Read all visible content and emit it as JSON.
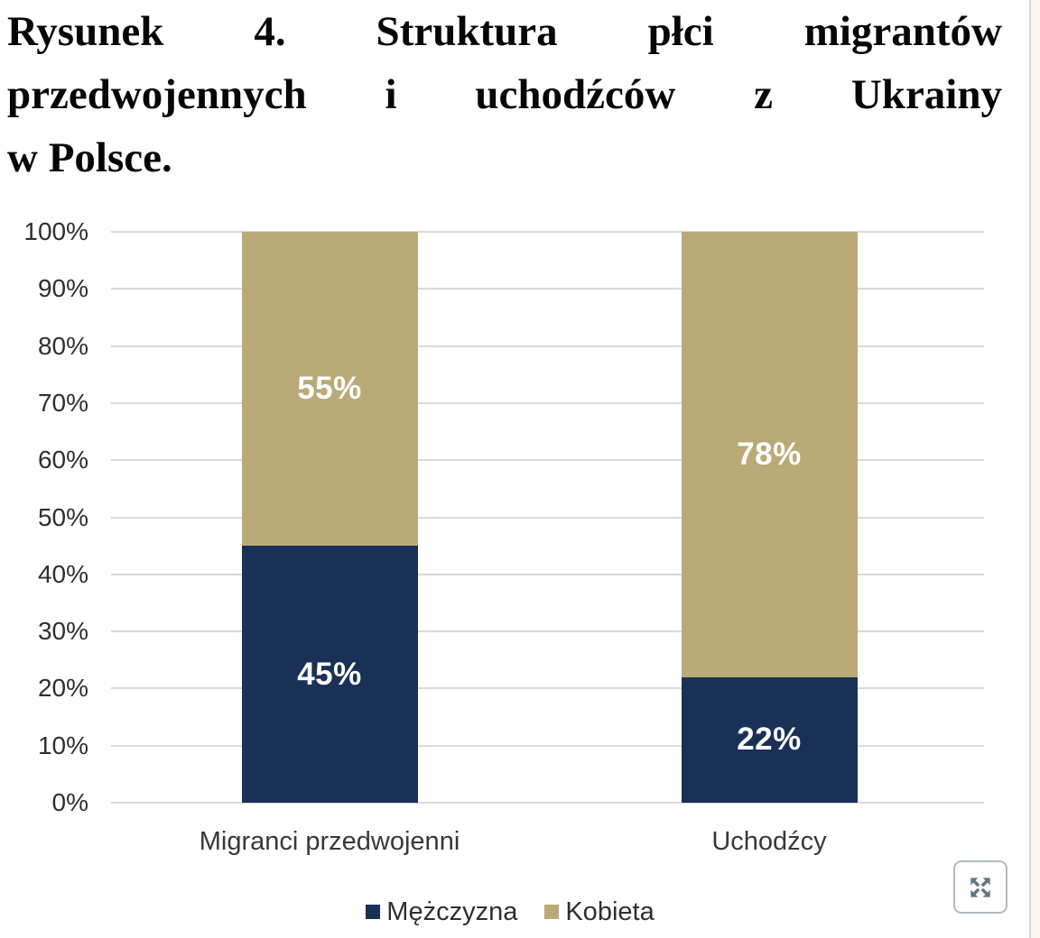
{
  "figure": {
    "title_full": "Rysunek 4. Struktura płci migrantów przedwojennych i uchodźców z Ukrainy w Polsce.",
    "title_lines": [
      "Rysunek 4. Struktura płci migrantów",
      "przedwojennych i uchodźców z Ukrainy",
      "w Polsce."
    ]
  },
  "chart_data": {
    "type": "bar",
    "stacked": true,
    "title": "Rysunek 4. Struktura płci migrantów przedwojennych i uchodźców z Ukrainy w Polsce.",
    "categories": [
      "Migranci przedwojenni",
      "Uchodźcy"
    ],
    "series": [
      {
        "name": "Mężczyzna",
        "color": "#1a3157",
        "values": [
          45,
          22
        ]
      },
      {
        "name": "Kobieta",
        "color": "#b9aa77",
        "values": [
          55,
          78
        ]
      }
    ],
    "data_labels": {
      "Mężczyzna": [
        "45%",
        "22%"
      ],
      "Kobieta": [
        "55%",
        "78%"
      ]
    },
    "xlabel": "",
    "ylabel": "",
    "ylim": [
      0,
      100
    ],
    "y_ticks": [
      100,
      90,
      80,
      70,
      60,
      50,
      40,
      30,
      20,
      10,
      0
    ],
    "y_tick_suffix": "%",
    "grid": true,
    "legend_position": "bottom",
    "colors": {
      "gridline": "#d9d9d9",
      "data_label_text": "#ffffff",
      "axis_text": "#2f2f2f"
    }
  },
  "controls": {
    "expand_icon": "expand-arrows-icon",
    "scrollbar": "vertical-scrollbar-track"
  }
}
